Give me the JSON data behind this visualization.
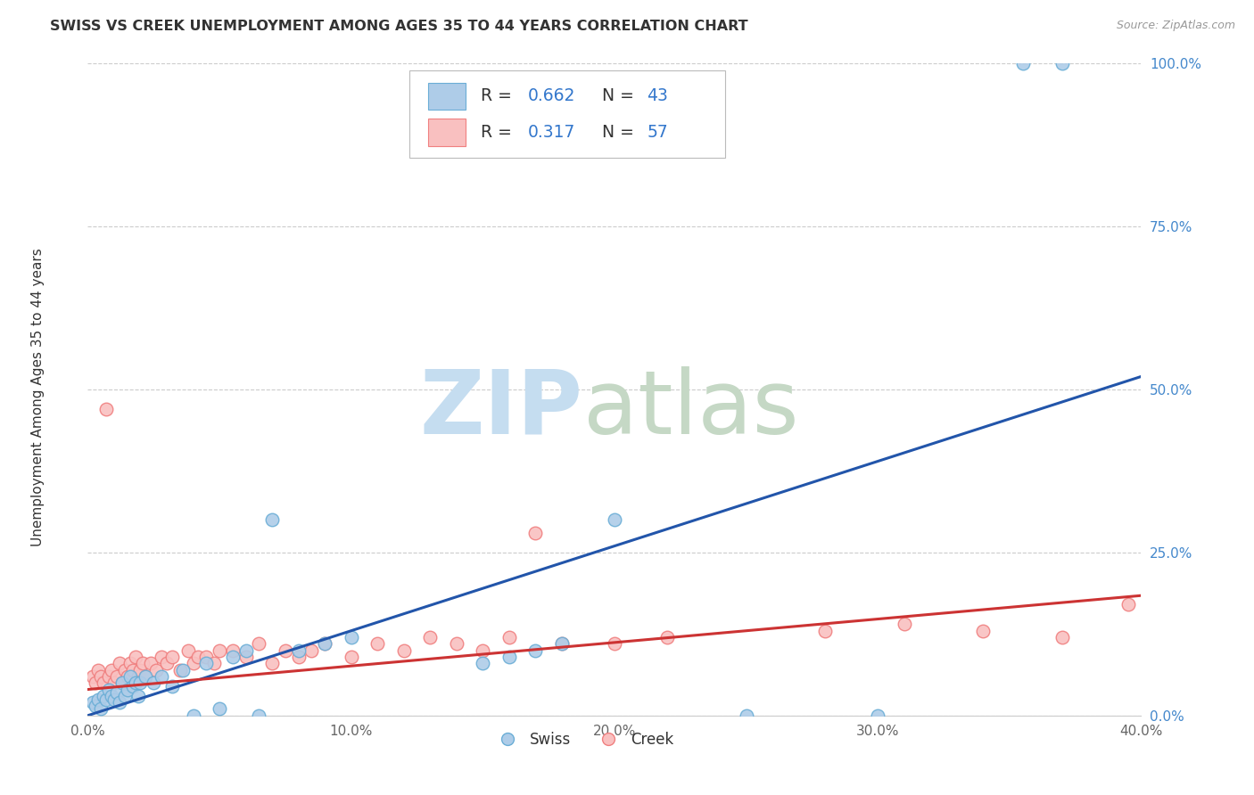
{
  "title": "SWISS VS CREEK UNEMPLOYMENT AMONG AGES 35 TO 44 YEARS CORRELATION CHART",
  "source": "Source: ZipAtlas.com",
  "ylabel": "Unemployment Among Ages 35 to 44 years",
  "xlim": [
    0,
    0.4
  ],
  "ylim": [
    0,
    1.0
  ],
  "xtick_vals": [
    0.0,
    0.1,
    0.2,
    0.3,
    0.4
  ],
  "xtick_labels": [
    "0.0%",
    "10.0%",
    "20.0%",
    "30.0%",
    "40.0%"
  ],
  "ytick_vals": [
    0.0,
    0.25,
    0.5,
    0.75,
    1.0
  ],
  "ytick_labels": [
    "0.0%",
    "25.0%",
    "50.0%",
    "75.0%",
    "100.0%"
  ],
  "swiss_color_edge": "#6baed6",
  "swiss_color_face": "#aecce8",
  "creek_color_edge": "#f08080",
  "creek_color_face": "#f9c0c0",
  "line_swiss_color": "#2255aa",
  "line_creek_color": "#cc3333",
  "legend_swiss_r": "0.662",
  "legend_swiss_n": "43",
  "legend_creek_r": "0.317",
  "legend_creek_n": "57",
  "text_color": "#333333",
  "tick_color_y": "#4488cc",
  "tick_color_x": "#666666",
  "grid_color": "#cccccc",
  "watermark_zip_color": "#c5ddf0",
  "watermark_atlas_color": "#c5d8c5"
}
